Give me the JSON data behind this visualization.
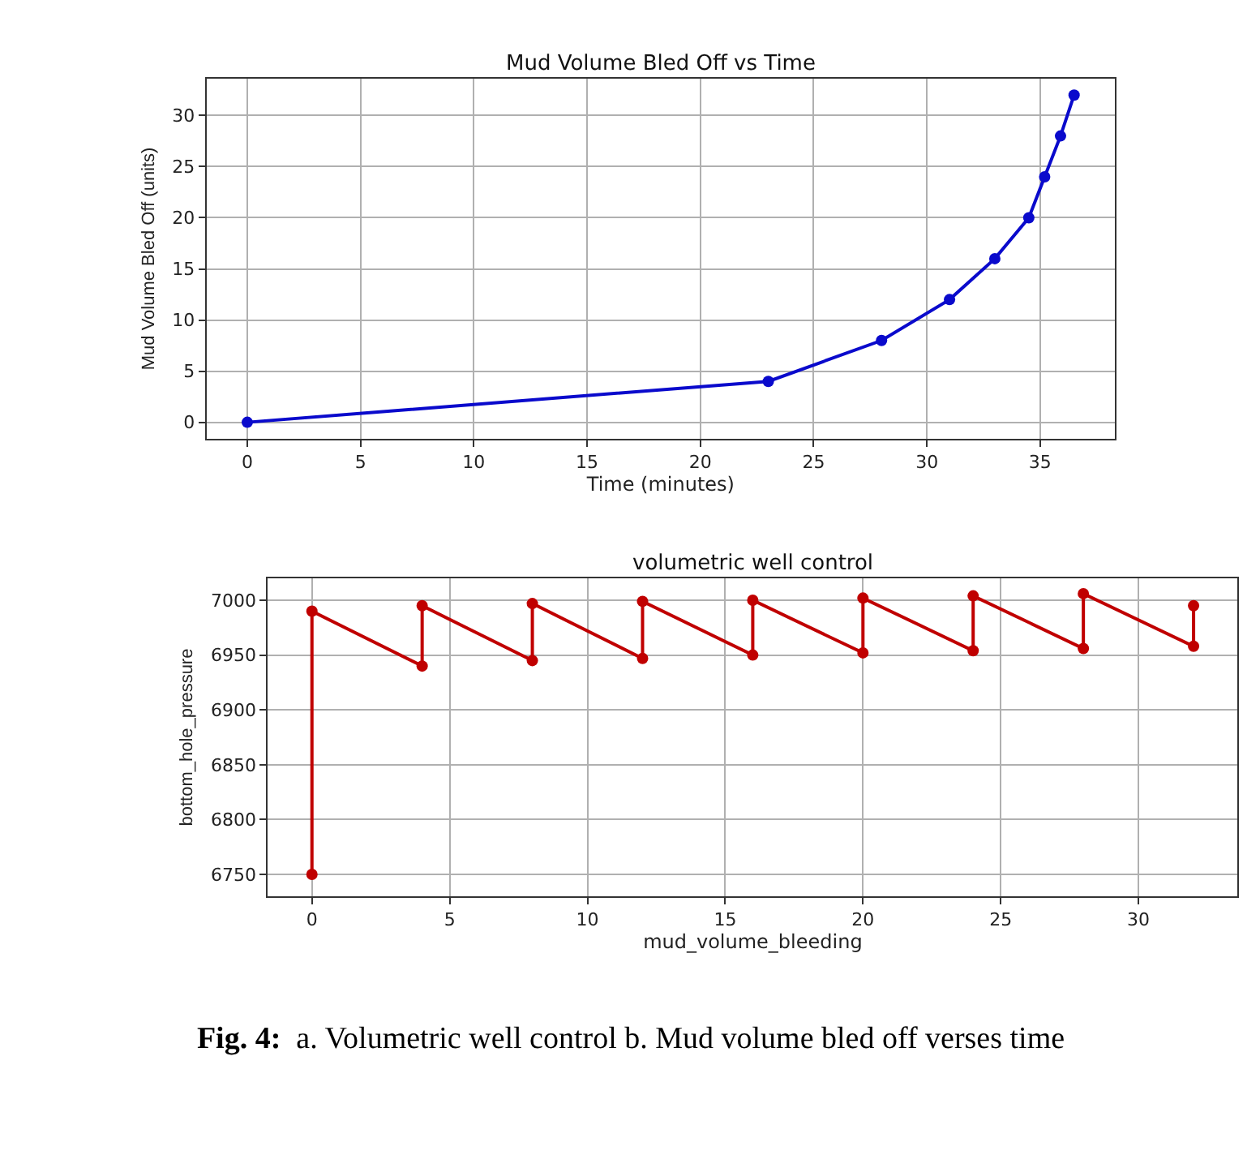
{
  "chart_data": [
    {
      "type": "line",
      "title": "Mud Volume Bled Off vs Time",
      "xlabel": "Time (minutes)",
      "ylabel": "Mud Volume Bled Off (units)",
      "x": [
        0,
        23,
        28,
        31,
        33,
        34.5,
        35.2,
        35.9,
        36.5
      ],
      "series": [
        {
          "color": "#0a0acc",
          "values": [
            0,
            4,
            8,
            12,
            16,
            20,
            24,
            28,
            32
          ]
        }
      ],
      "xlim": [
        -1.8,
        38.3
      ],
      "xticks": [
        0,
        5,
        10,
        15,
        20,
        25,
        30,
        35
      ],
      "ylim": [
        -1.6,
        33.6
      ],
      "yticks": [
        0,
        5,
        10,
        15,
        20,
        25,
        30
      ],
      "grid": true,
      "marker": "circle",
      "line_style": "solid"
    },
    {
      "type": "line",
      "title": "volumetric well control",
      "xlabel": "mud_volume_bleeding",
      "ylabel": "bottom_hole_pressure",
      "x": [
        0,
        0,
        4,
        4,
        8,
        8,
        12,
        12,
        16,
        16,
        20,
        20,
        24,
        24,
        28,
        28,
        32,
        32
      ],
      "series": [
        {
          "color": "#c00000",
          "values": [
            6750,
            6990,
            6940,
            6995,
            6945,
            6997,
            6947,
            6999,
            6950,
            7000,
            6952,
            7002,
            6954,
            7004,
            6956,
            7006,
            6958,
            6995
          ]
        }
      ],
      "xlim": [
        -1.6,
        33.6
      ],
      "xticks": [
        0,
        5,
        10,
        15,
        20,
        25,
        30
      ],
      "ylim": [
        6730,
        7020
      ],
      "yticks": [
        6750,
        6800,
        6850,
        6900,
        6950,
        7000
      ],
      "grid": true,
      "marker": "circle",
      "line_style": "solid",
      "annotations": [
        "Fig. 4:  a. Volumetric well control b. Mud volume bled off verses time"
      ]
    }
  ]
}
